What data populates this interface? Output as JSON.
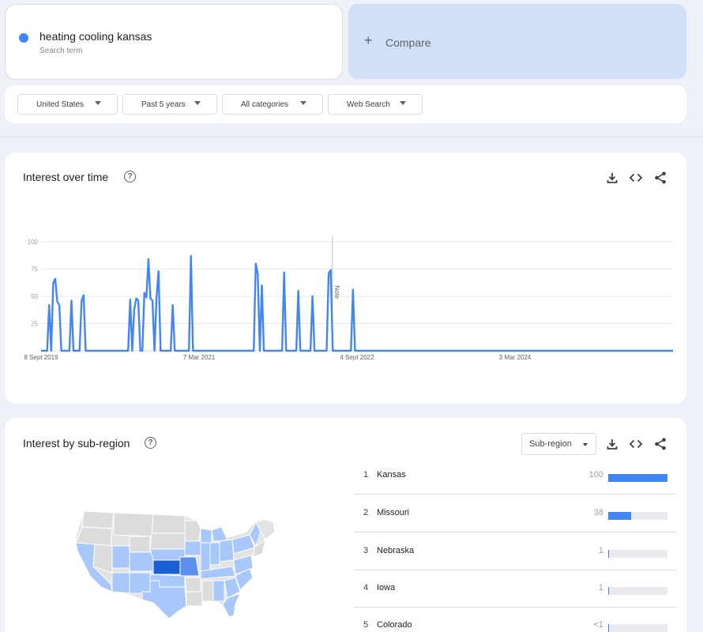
{
  "search": {
    "term": "heating cooling kansas",
    "term_sub": "Search term",
    "term_color": "#4285f4"
  },
  "compare": {
    "plus": "+",
    "label": "Compare"
  },
  "filters": {
    "region": "United States",
    "time": "Past 5 years",
    "category": "All categories",
    "source": "Web Search"
  },
  "interest_over_time": {
    "title": "Interest over time",
    "help": "?",
    "note": "Note"
  },
  "chart_data": {
    "type": "line",
    "title": "",
    "xlabel": "",
    "ylabel": "",
    "ylim": [
      0,
      100
    ],
    "yticks": [
      25,
      50,
      75,
      100
    ],
    "xticks": [
      "8 Sept 2019",
      "7 Mar 2021",
      "4 Sept 2022",
      "3 Mar 2024"
    ],
    "xtick_index": [
      0,
      78,
      156,
      234
    ],
    "grid": true,
    "series": [
      {
        "color": "#4285f4",
        "values": [
          0,
          0,
          0,
          0,
          42,
          0,
          62,
          66,
          45,
          42,
          0,
          0,
          0,
          0,
          0,
          46,
          0,
          0,
          0,
          0,
          46,
          51,
          0,
          0,
          0,
          0,
          0,
          0,
          0,
          0,
          0,
          0,
          0,
          0,
          0,
          0,
          0,
          0,
          0,
          0,
          0,
          0,
          0,
          0,
          47,
          0,
          38,
          48,
          46,
          0,
          0,
          53,
          49,
          84,
          48,
          46,
          0,
          49,
          73,
          0,
          0,
          0,
          0,
          0,
          0,
          42,
          0,
          0,
          0,
          0,
          0,
          0,
          0,
          0,
          87,
          0,
          0,
          0,
          0,
          0,
          0,
          0,
          0,
          0,
          0,
          0,
          0,
          0,
          0,
          0,
          0,
          0,
          0,
          0,
          0,
          0,
          0,
          0,
          0,
          0,
          0,
          0,
          0,
          0,
          0,
          0,
          80,
          70,
          0,
          60,
          0,
          0,
          0,
          0,
          0,
          0,
          0,
          0,
          0,
          0,
          72,
          0,
          0,
          0,
          0,
          0,
          0,
          55,
          0,
          0,
          0,
          0,
          0,
          0,
          50,
          0,
          0,
          0,
          0,
          0,
          0,
          0,
          71,
          74,
          0,
          0,
          0,
          0,
          0,
          0,
          0,
          0,
          0,
          0,
          56,
          0,
          0,
          0,
          0,
          0,
          0,
          0,
          0,
          0,
          0,
          0,
          0,
          0,
          0,
          0,
          0,
          0,
          0,
          0,
          0,
          0,
          0,
          0,
          0,
          0,
          0,
          0,
          0,
          0,
          0,
          0,
          0,
          0,
          0,
          0,
          0,
          0,
          0,
          0,
          0,
          0,
          0,
          0,
          0,
          0,
          0,
          0,
          0,
          0,
          0,
          0,
          0,
          0,
          0,
          0,
          0,
          0,
          0,
          0,
          0,
          0,
          0,
          0,
          0,
          0,
          0,
          0,
          0,
          0,
          0,
          0,
          0,
          0,
          0,
          0,
          0,
          0,
          0,
          0,
          0,
          0,
          0,
          0,
          0,
          0,
          0,
          0,
          0,
          0,
          0,
          0,
          0,
          0,
          0,
          0,
          0,
          0,
          0,
          0,
          0,
          0,
          0,
          0,
          0,
          0,
          0,
          0,
          0,
          0,
          0,
          0,
          0,
          0,
          0,
          0,
          0,
          0,
          0,
          0,
          0,
          0,
          0,
          0,
          0,
          0,
          0,
          0,
          0,
          0,
          0,
          0,
          0,
          0,
          0,
          0,
          0,
          0,
          0,
          0,
          0,
          0,
          0,
          0,
          0,
          0,
          0,
          0,
          0,
          0,
          0,
          0,
          0,
          0,
          0,
          0,
          0,
          0,
          0
        ]
      }
    ]
  },
  "subregion": {
    "title": "Interest by sub-region",
    "help": "?",
    "select_label": "Sub-region",
    "rows": [
      {
        "rank": "1",
        "name": "Kansas",
        "value": "100",
        "level": 1.0
      },
      {
        "rank": "2",
        "name": "Missouri",
        "value": "38",
        "level": 0.38
      },
      {
        "rank": "3",
        "name": "Nebraska",
        "value": "1",
        "level": 0.01
      },
      {
        "rank": "4",
        "name": "Iowa",
        "value": "1",
        "level": 0.01
      },
      {
        "rank": "5",
        "name": "Colorado",
        "value": "<1",
        "level": 0.005
      }
    ]
  },
  "colors": {
    "accent": "#4285f4",
    "map_high": "#1a5fd4",
    "map_mid": "#5d8ff0",
    "map_low": "#a8c7fa",
    "map_none": "#e3e3e3"
  },
  "icons": [
    "search-dot",
    "plus-icon",
    "help-icon",
    "download-icon",
    "embed-icon",
    "share-icon",
    "caret-down-icon"
  ]
}
